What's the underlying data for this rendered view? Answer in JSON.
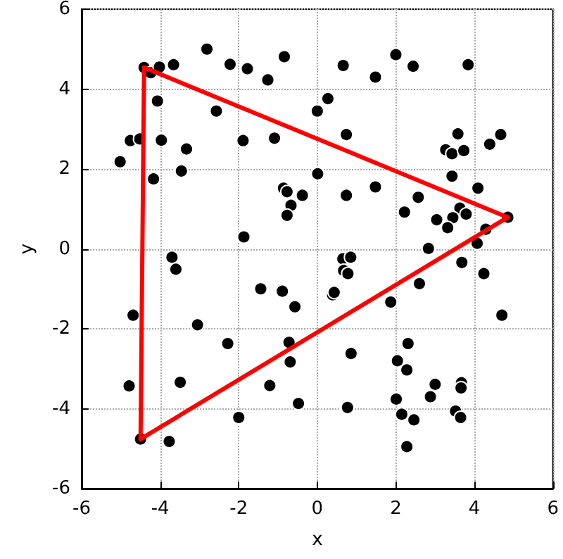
{
  "chart_data": {
    "type": "scatter",
    "xlabel": "x",
    "ylabel": "y",
    "xlim": [
      -6,
      6
    ],
    "ylim": [
      -6,
      6
    ],
    "xticks": [
      -6,
      -4,
      -2,
      0,
      2,
      4,
      6
    ],
    "yticks": [
      -6,
      -4,
      -2,
      0,
      2,
      4,
      6
    ],
    "grid": true,
    "marker": "circle",
    "series": [
      {
        "color": "#000000",
        "x": [
          -4.41,
          -4.24,
          -4.02,
          -3.66,
          -2.81,
          -2.22,
          -1.78,
          -0.84,
          -1.26,
          -4.07,
          -2.57,
          0.0,
          -4.76,
          -4.52,
          -3.97,
          -1.89,
          -1.09,
          -3.33,
          -5.02,
          -4.17,
          -3.46,
          0.01,
          -0.86,
          -0.77,
          -0.38,
          -0.67,
          -0.77,
          -1.87,
          0.66,
          1.48,
          2.0,
          2.44,
          3.84,
          0.27,
          0.74,
          3.58,
          4.67,
          4.39,
          3.27,
          3.43,
          3.73,
          3.43,
          0.74,
          1.48,
          2.57,
          4.09,
          2.22,
          3.63,
          3.79,
          3.45,
          3.04,
          3.32,
          4.85,
          4.29,
          4.07,
          2.83,
          -3.7,
          -3.6,
          -1.44,
          -0.89,
          -0.57,
          -4.69,
          -3.05,
          -2.28,
          -0.72,
          -0.69,
          -4.79,
          -3.49,
          -1.21,
          -0.48,
          -2.0,
          -4.5,
          -3.77,
          0.65,
          0.85,
          0.67,
          0.78,
          3.68,
          4.24,
          2.6,
          0.39,
          0.43,
          1.87,
          4.7,
          2.31,
          0.86,
          2.04,
          2.28,
          3.0,
          3.67,
          3.66,
          2.88,
          2.01,
          0.77,
          2.15,
          2.46,
          3.52,
          3.65,
          2.28
        ],
        "values": [
          4.54,
          4.41,
          4.55,
          4.61,
          5.0,
          4.62,
          4.51,
          4.81,
          4.23,
          3.7,
          3.45,
          3.45,
          2.71,
          2.75,
          2.72,
          2.71,
          2.77,
          2.5,
          2.18,
          1.75,
          1.95,
          1.88,
          1.52,
          1.43,
          1.34,
          1.09,
          0.84,
          0.3,
          4.59,
          4.3,
          4.86,
          4.57,
          4.61,
          3.76,
          2.86,
          2.88,
          2.86,
          2.62,
          2.48,
          2.38,
          2.46,
          1.82,
          1.34,
          1.55,
          1.29,
          1.52,
          0.92,
          1.02,
          0.87,
          0.78,
          0.73,
          0.53,
          0.79,
          0.49,
          0.14,
          0.01,
          -0.21,
          -0.51,
          -1.0,
          -1.06,
          -1.45,
          -1.66,
          -1.9,
          -2.37,
          -2.34,
          -2.83,
          -3.43,
          -3.34,
          -3.42,
          -3.87,
          -4.22,
          -4.76,
          -4.82,
          -0.25,
          -0.21,
          -0.54,
          -0.62,
          -0.34,
          -0.62,
          -0.87,
          -1.15,
          -1.09,
          -1.33,
          -1.66,
          -2.37,
          -2.62,
          -2.8,
          -3.03,
          -3.39,
          -3.35,
          -3.48,
          -3.7,
          -3.76,
          -3.97,
          -4.14,
          -4.28,
          -4.06,
          -4.22,
          -4.95
        ]
      },
      {
        "type": "line",
        "color": "#ff0000",
        "marker": "none",
        "line_style": "solid",
        "x": [
          -4.41,
          4.85
        ],
        "values": [
          4.54,
          0.79
        ]
      },
      {
        "type": "line",
        "color": "#ff0000",
        "marker": "none",
        "line_style": "solid",
        "x": [
          -4.5,
          4.85
        ],
        "values": [
          -4.76,
          0.79
        ]
      },
      {
        "type": "line",
        "color": "#ff0000",
        "marker": "none",
        "line_style": "solid",
        "x": [
          -4.5,
          -4.41
        ],
        "values": [
          -4.76,
          4.54
        ]
      }
    ]
  }
}
